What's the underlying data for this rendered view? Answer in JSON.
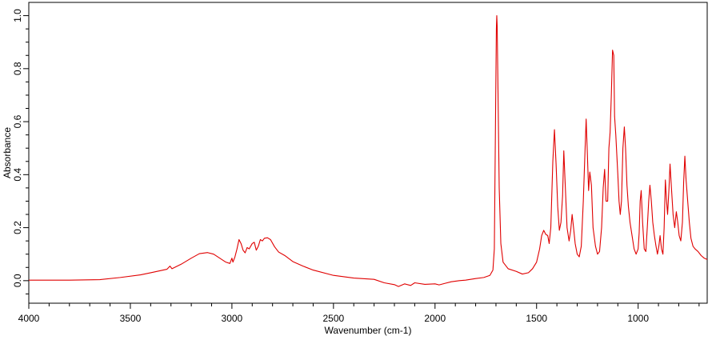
{
  "chart_data": {
    "type": "line",
    "title": "",
    "xlabel": "Wavenumber (cm-1)",
    "ylabel": "Absorbance",
    "xlim": [
      4000,
      660
    ],
    "ylim": [
      -0.085,
      1.05
    ],
    "x_reversed": true,
    "x_ticks": [
      4000,
      3500,
      3000,
      2500,
      2000,
      1500,
      1000
    ],
    "x_tick_labels": [
      "4000",
      "3500",
      "3000",
      "2500",
      "2000",
      "1500",
      "1000"
    ],
    "y_ticks": [
      0.0,
      0.2,
      0.4,
      0.6,
      0.8,
      1.0
    ],
    "y_tick_labels": [
      "0.0",
      "0.2",
      "0.4",
      "0.6",
      "0.8",
      "1.0"
    ],
    "grid": false,
    "legend": "none",
    "series": [
      {
        "color": "#e00000",
        "points": [
          [
            4000,
            0.002
          ],
          [
            3800,
            0.002
          ],
          [
            3650,
            0.004
          ],
          [
            3550,
            0.012
          ],
          [
            3450,
            0.022
          ],
          [
            3400,
            0.03
          ],
          [
            3320,
            0.043
          ],
          [
            3305,
            0.055
          ],
          [
            3295,
            0.045
          ],
          [
            3250,
            0.062
          ],
          [
            3200,
            0.085
          ],
          [
            3160,
            0.102
          ],
          [
            3120,
            0.106
          ],
          [
            3090,
            0.1
          ],
          [
            3060,
            0.085
          ],
          [
            3030,
            0.07
          ],
          [
            3010,
            0.065
          ],
          [
            3000,
            0.085
          ],
          [
            2995,
            0.07
          ],
          [
            2985,
            0.09
          ],
          [
            2975,
            0.12
          ],
          [
            2965,
            0.155
          ],
          [
            2955,
            0.14
          ],
          [
            2945,
            0.115
          ],
          [
            2935,
            0.105
          ],
          [
            2925,
            0.125
          ],
          [
            2915,
            0.12
          ],
          [
            2900,
            0.14
          ],
          [
            2890,
            0.145
          ],
          [
            2880,
            0.115
          ],
          [
            2870,
            0.13
          ],
          [
            2860,
            0.155
          ],
          [
            2850,
            0.15
          ],
          [
            2840,
            0.16
          ],
          [
            2825,
            0.162
          ],
          [
            2810,
            0.155
          ],
          [
            2790,
            0.128
          ],
          [
            2770,
            0.108
          ],
          [
            2740,
            0.095
          ],
          [
            2700,
            0.072
          ],
          [
            2650,
            0.055
          ],
          [
            2600,
            0.04
          ],
          [
            2500,
            0.02
          ],
          [
            2400,
            0.01
          ],
          [
            2300,
            0.005
          ],
          [
            2250,
            -0.008
          ],
          [
            2200,
            -0.015
          ],
          [
            2180,
            -0.022
          ],
          [
            2150,
            -0.012
          ],
          [
            2120,
            -0.018
          ],
          [
            2100,
            -0.008
          ],
          [
            2050,
            -0.014
          ],
          [
            2000,
            -0.012
          ],
          [
            1980,
            -0.016
          ],
          [
            1950,
            -0.01
          ],
          [
            1920,
            -0.004
          ],
          [
            1880,
            0.0
          ],
          [
            1850,
            0.002
          ],
          [
            1800,
            0.008
          ],
          [
            1760,
            0.012
          ],
          [
            1730,
            0.02
          ],
          [
            1715,
            0.04
          ],
          [
            1708,
            0.12
          ],
          [
            1702,
            0.62
          ],
          [
            1698,
            0.95
          ],
          [
            1696,
            1.0
          ],
          [
            1694,
            0.96
          ],
          [
            1690,
            0.72
          ],
          [
            1684,
            0.35
          ],
          [
            1676,
            0.14
          ],
          [
            1665,
            0.07
          ],
          [
            1640,
            0.045
          ],
          [
            1600,
            0.035
          ],
          [
            1570,
            0.025
          ],
          [
            1540,
            0.03
          ],
          [
            1520,
            0.045
          ],
          [
            1500,
            0.07
          ],
          [
            1485,
            0.12
          ],
          [
            1475,
            0.17
          ],
          [
            1465,
            0.19
          ],
          [
            1455,
            0.175
          ],
          [
            1445,
            0.17
          ],
          [
            1438,
            0.14
          ],
          [
            1430,
            0.2
          ],
          [
            1420,
            0.45
          ],
          [
            1412,
            0.57
          ],
          [
            1404,
            0.44
          ],
          [
            1396,
            0.28
          ],
          [
            1388,
            0.19
          ],
          [
            1380,
            0.22
          ],
          [
            1372,
            0.32
          ],
          [
            1366,
            0.49
          ],
          [
            1360,
            0.38
          ],
          [
            1350,
            0.2
          ],
          [
            1340,
            0.15
          ],
          [
            1332,
            0.19
          ],
          [
            1325,
            0.25
          ],
          [
            1318,
            0.2
          ],
          [
            1310,
            0.14
          ],
          [
            1300,
            0.1
          ],
          [
            1290,
            0.09
          ],
          [
            1280,
            0.13
          ],
          [
            1270,
            0.3
          ],
          [
            1262,
            0.48
          ],
          [
            1256,
            0.61
          ],
          [
            1250,
            0.48
          ],
          [
            1244,
            0.34
          ],
          [
            1238,
            0.41
          ],
          [
            1230,
            0.36
          ],
          [
            1222,
            0.2
          ],
          [
            1210,
            0.13
          ],
          [
            1200,
            0.1
          ],
          [
            1190,
            0.11
          ],
          [
            1180,
            0.2
          ],
          [
            1172,
            0.35
          ],
          [
            1165,
            0.42
          ],
          [
            1158,
            0.3
          ],
          [
            1150,
            0.3
          ],
          [
            1144,
            0.5
          ],
          [
            1138,
            0.56
          ],
          [
            1132,
            0.7
          ],
          [
            1126,
            0.87
          ],
          [
            1120,
            0.85
          ],
          [
            1116,
            0.62
          ],
          [
            1110,
            0.55
          ],
          [
            1100,
            0.4
          ],
          [
            1094,
            0.3
          ],
          [
            1088,
            0.25
          ],
          [
            1082,
            0.3
          ],
          [
            1075,
            0.5
          ],
          [
            1068,
            0.58
          ],
          [
            1062,
            0.5
          ],
          [
            1055,
            0.36
          ],
          [
            1048,
            0.28
          ],
          [
            1040,
            0.22
          ],
          [
            1030,
            0.17
          ],
          [
            1020,
            0.12
          ],
          [
            1010,
            0.1
          ],
          [
            1000,
            0.12
          ],
          [
            995,
            0.18
          ],
          [
            990,
            0.3
          ],
          [
            985,
            0.34
          ],
          [
            978,
            0.22
          ],
          [
            970,
            0.12
          ],
          [
            962,
            0.11
          ],
          [
            955,
            0.2
          ],
          [
            948,
            0.3
          ],
          [
            942,
            0.36
          ],
          [
            935,
            0.3
          ],
          [
            928,
            0.22
          ],
          [
            920,
            0.17
          ],
          [
            912,
            0.13
          ],
          [
            905,
            0.1
          ],
          [
            898,
            0.13
          ],
          [
            892,
            0.17
          ],
          [
            885,
            0.12
          ],
          [
            878,
            0.1
          ],
          [
            872,
            0.2
          ],
          [
            866,
            0.38
          ],
          [
            860,
            0.3
          ],
          [
            855,
            0.25
          ],
          [
            848,
            0.35
          ],
          [
            843,
            0.44
          ],
          [
            836,
            0.35
          ],
          [
            828,
            0.25
          ],
          [
            820,
            0.2
          ],
          [
            812,
            0.26
          ],
          [
            805,
            0.22
          ],
          [
            798,
            0.17
          ],
          [
            790,
            0.15
          ],
          [
            782,
            0.22
          ],
          [
            776,
            0.37
          ],
          [
            770,
            0.47
          ],
          [
            764,
            0.38
          ],
          [
            756,
            0.3
          ],
          [
            748,
            0.22
          ],
          [
            740,
            0.16
          ],
          [
            730,
            0.13
          ],
          [
            720,
            0.12
          ],
          [
            705,
            0.11
          ],
          [
            690,
            0.095
          ],
          [
            675,
            0.085
          ],
          [
            660,
            0.08
          ]
        ]
      }
    ]
  }
}
